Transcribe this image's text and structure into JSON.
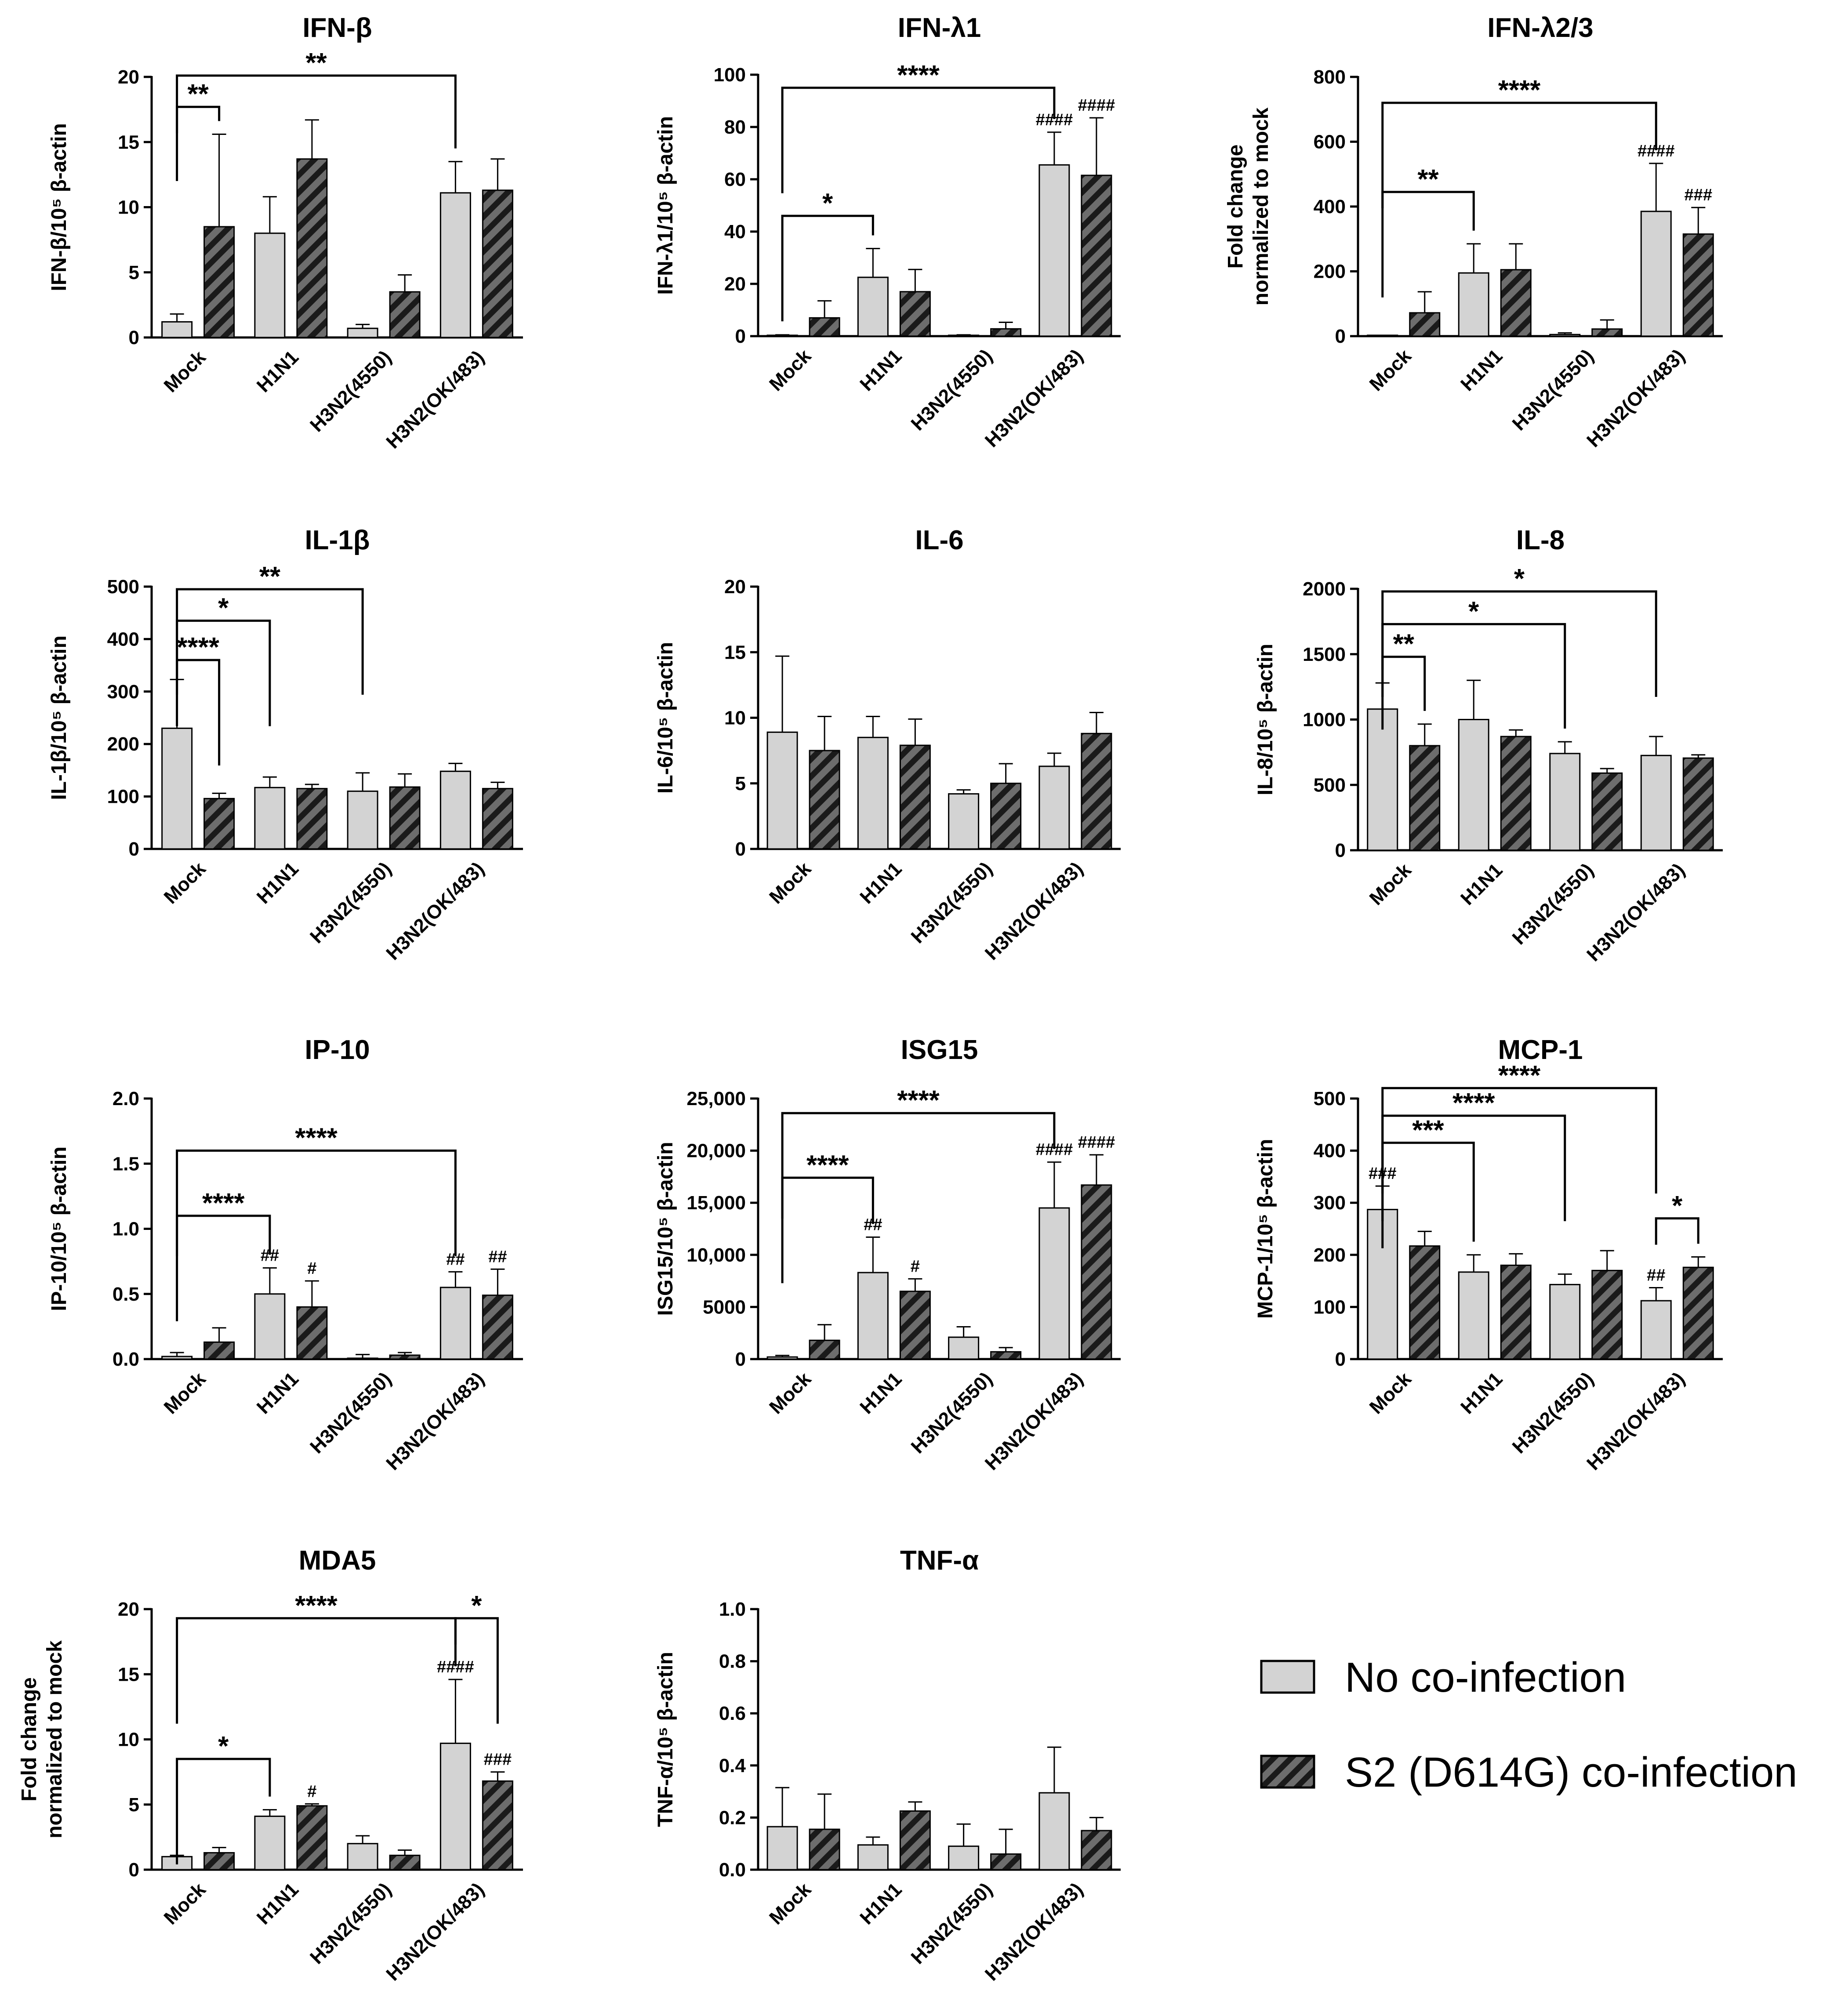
{
  "legend": {
    "items": [
      {
        "label": "No co-infection",
        "style": "solid",
        "color": "#d3d3d3"
      },
      {
        "label": "S2 (D614G) co-infection",
        "style": "hatched",
        "color": "#6d6d6d"
      }
    ]
  },
  "colors": {
    "no_coinfection": "#d3d3d3",
    "coinfection_base": "#6d6d6d",
    "coinfection_stripe": "#1a1a1a",
    "axis": "#000000"
  },
  "chart_data": [
    {
      "type": "bar",
      "title": "IFN-β",
      "ylabel": "IFN-β/10⁵ β-actin",
      "ylabel_lines": [
        "IFN-β/10⁵ β-actin"
      ],
      "categories": [
        "Mock",
        "H1N1",
        "H3N2(4550)",
        "H3N2(OK/483)"
      ],
      "ylim": [
        0,
        20
      ],
      "yticks": [
        0,
        5,
        10,
        15,
        20
      ],
      "ytick_labels": [
        "0",
        "5",
        "10",
        "15",
        "20"
      ],
      "series": [
        {
          "name": "No co-infection",
          "values": [
            1.2,
            8.0,
            0.7,
            11.1
          ],
          "errors": [
            0.6,
            2.8,
            0.3,
            2.4
          ]
        },
        {
          "name": "S2 (D614G) co-infection",
          "values": [
            8.5,
            13.7,
            3.5,
            11.3
          ],
          "errors": [
            7.1,
            3.0,
            1.3,
            2.4
          ]
        }
      ],
      "brackets": [
        {
          "from": [
            0,
            0
          ],
          "to": [
            0,
            1
          ],
          "y": 17.7,
          "label": "**"
        },
        {
          "from": [
            0,
            0
          ],
          "to": [
            3,
            0
          ],
          "y": 20.1,
          "label": "**"
        }
      ],
      "hashes": []
    },
    {
      "type": "bar",
      "title": "IFN-λ1",
      "ylabel": "IFN-λ1/10⁵ β-actin",
      "ylabel_lines": [
        "IFN-λ1/10⁵ β-actin"
      ],
      "categories": [
        "Mock",
        "H1N1",
        "H3N2(4550)",
        "H3N2(OK/483)"
      ],
      "ylim": [
        0,
        100
      ],
      "yticks": [
        0,
        20,
        40,
        60,
        80,
        100
      ],
      "ytick_labels": [
        "0",
        "20",
        "40",
        "60",
        "80",
        "100"
      ],
      "series": [
        {
          "name": "No co-infection",
          "values": [
            0.2,
            22.5,
            0.2,
            65.5
          ],
          "errors": [
            0.3,
            11.0,
            0.3,
            12.5
          ]
        },
        {
          "name": "S2 (D614G) co-infection",
          "values": [
            7.0,
            17.0,
            2.8,
            61.5
          ],
          "errors": [
            6.5,
            8.5,
            2.5,
            22.0
          ]
        }
      ],
      "brackets": [
        {
          "from": [
            0,
            0
          ],
          "to": [
            1,
            0
          ],
          "y": 46,
          "label": "*"
        },
        {
          "from": [
            0,
            0
          ],
          "to": [
            3,
            0
          ],
          "y": 95,
          "label": "****"
        }
      ],
      "hashes": [
        {
          "cat": 3,
          "series": 0,
          "text": "####"
        },
        {
          "cat": 3,
          "series": 1,
          "text": "####"
        }
      ]
    },
    {
      "type": "bar",
      "title": "IFN-λ2/3",
      "ylabel": "Fold change normalized to mock",
      "ylabel_lines": [
        "Fold change",
        "normalized to mock"
      ],
      "categories": [
        "Mock",
        "H1N1",
        "H3N2(4550)",
        "H3N2(OK/483)"
      ],
      "ylim": [
        0,
        800
      ],
      "yticks": [
        0,
        200,
        400,
        600,
        800
      ],
      "ytick_labels": [
        "0",
        "200",
        "400",
        "600",
        "800"
      ],
      "series": [
        {
          "name": "No co-infection",
          "values": [
            1,
            195,
            5,
            385
          ],
          "errors": [
            1,
            90,
            5,
            148
          ]
        },
        {
          "name": "S2 (D614G) co-infection",
          "values": [
            72,
            205,
            22,
            315
          ],
          "errors": [
            65,
            80,
            28,
            82
          ]
        }
      ],
      "brackets": [
        {
          "from": [
            0,
            0
          ],
          "to": [
            1,
            0
          ],
          "y": 445,
          "label": "**"
        },
        {
          "from": [
            0,
            0
          ],
          "to": [
            3,
            0
          ],
          "y": 720,
          "label": "****"
        }
      ],
      "hashes": [
        {
          "cat": 3,
          "series": 0,
          "text": "####"
        },
        {
          "cat": 3,
          "series": 1,
          "text": "###"
        }
      ]
    },
    {
      "type": "bar",
      "title": "IL-1β",
      "ylabel": "IL-1β/10⁵ β-actin",
      "ylabel_lines": [
        "IL-1β/10⁵ β-actin"
      ],
      "categories": [
        "Mock",
        "H1N1",
        "H3N2(4550)",
        "H3N2(OK/483)"
      ],
      "ylim": [
        0,
        500
      ],
      "yticks": [
        0,
        100,
        200,
        300,
        400,
        500
      ],
      "ytick_labels": [
        "0",
        "100",
        "200",
        "300",
        "400",
        "500"
      ],
      "series": [
        {
          "name": "No co-infection",
          "values": [
            230,
            117,
            110,
            148
          ],
          "errors": [
            93,
            20,
            35,
            15
          ]
        },
        {
          "name": "S2 (D614G) co-infection",
          "values": [
            96,
            115,
            118,
            115
          ],
          "errors": [
            10,
            8,
            25,
            12
          ]
        }
      ],
      "brackets": [
        {
          "from": [
            0,
            0
          ],
          "to": [
            0,
            1
          ],
          "y": 360,
          "label": "****"
        },
        {
          "from": [
            0,
            0
          ],
          "to": [
            1,
            0
          ],
          "y": 435,
          "label": "*"
        },
        {
          "from": [
            0,
            0
          ],
          "to": [
            2,
            0
          ],
          "y": 495,
          "label": "**"
        }
      ],
      "hashes": []
    },
    {
      "type": "bar",
      "title": "IL-6",
      "ylabel": "IL-6/10⁵ β-actin",
      "ylabel_lines": [
        "IL-6/10⁵ β-actin"
      ],
      "categories": [
        "Mock",
        "H1N1",
        "H3N2(4550)",
        "H3N2(OK/483)"
      ],
      "ylim": [
        0,
        20
      ],
      "yticks": [
        0,
        5,
        10,
        15,
        20
      ],
      "ytick_labels": [
        "0",
        "5",
        "10",
        "15",
        "20"
      ],
      "series": [
        {
          "name": "No co-infection",
          "values": [
            8.9,
            8.5,
            4.2,
            6.3
          ],
          "errors": [
            5.8,
            1.6,
            0.3,
            1.0
          ]
        },
        {
          "name": "S2 (D614G) co-infection",
          "values": [
            7.5,
            7.9,
            5.0,
            8.8
          ],
          "errors": [
            2.6,
            2.0,
            1.5,
            1.6
          ]
        }
      ],
      "brackets": [],
      "hashes": []
    },
    {
      "type": "bar",
      "title": "IL-8",
      "ylabel": "IL-8/10⁵ β-actin",
      "ylabel_lines": [
        "IL-8/10⁵ β-actin"
      ],
      "categories": [
        "Mock",
        "H1N1",
        "H3N2(4550)",
        "H3N2(OK/483)"
      ],
      "ylim": [
        0,
        2000
      ],
      "yticks": [
        0,
        500,
        1000,
        1500,
        2000
      ],
      "ytick_labels": [
        "0",
        "500",
        "1000",
        "1500",
        "2000"
      ],
      "series": [
        {
          "name": "No co-infection",
          "values": [
            1080,
            1000,
            740,
            725
          ],
          "errors": [
            200,
            300,
            90,
            145
          ]
        },
        {
          "name": "S2 (D614G) co-infection",
          "values": [
            800,
            870,
            590,
            705
          ],
          "errors": [
            165,
            50,
            35,
            25
          ]
        }
      ],
      "brackets": [
        {
          "from": [
            0,
            0
          ],
          "to": [
            0,
            1
          ],
          "y": 1480,
          "label": "**"
        },
        {
          "from": [
            0,
            0
          ],
          "to": [
            2,
            0
          ],
          "y": 1730,
          "label": "*"
        },
        {
          "from": [
            0,
            0
          ],
          "to": [
            3,
            0
          ],
          "y": 1980,
          "label": "*"
        }
      ],
      "hashes": []
    },
    {
      "type": "bar",
      "title": "IP-10",
      "ylabel": "IP-10/10⁵ β-actin",
      "ylabel_lines": [
        "IP-10/10⁵ β-actin"
      ],
      "categories": [
        "Mock",
        "H1N1",
        "H3N2(4550)",
        "H3N2(OK/483)"
      ],
      "ylim": [
        0,
        2.0
      ],
      "yticks": [
        0,
        0.5,
        1.0,
        1.5,
        2.0
      ],
      "ytick_labels": [
        "0.0",
        "0.5",
        "1.0",
        "1.5",
        "2.0"
      ],
      "series": [
        {
          "name": "No co-infection",
          "values": [
            0.02,
            0.5,
            0.005,
            0.55
          ],
          "errors": [
            0.03,
            0.2,
            0.03,
            0.12
          ]
        },
        {
          "name": "S2 (D614G) co-infection",
          "values": [
            0.13,
            0.4,
            0.03,
            0.49
          ],
          "errors": [
            0.11,
            0.2,
            0.02,
            0.2
          ]
        }
      ],
      "brackets": [
        {
          "from": [
            0,
            0
          ],
          "to": [
            1,
            0
          ],
          "y": 1.1,
          "label": "****"
        },
        {
          "from": [
            0,
            0
          ],
          "to": [
            3,
            0
          ],
          "y": 1.6,
          "label": "****"
        }
      ],
      "hashes": [
        {
          "cat": 1,
          "series": 0,
          "text": "##"
        },
        {
          "cat": 1,
          "series": 1,
          "text": "#"
        },
        {
          "cat": 3,
          "series": 0,
          "text": "##"
        },
        {
          "cat": 3,
          "series": 1,
          "text": "##"
        }
      ]
    },
    {
      "type": "bar",
      "title": "ISG15",
      "title_small": true,
      "ylabel": "ISG15/10⁵ β-actin",
      "ylabel_lines": [
        "ISG15/10⁵ β-actin"
      ],
      "categories": [
        "Mock",
        "H1N1",
        "H3N2(4550)",
        "H3N2(OK/483)"
      ],
      "ylim": [
        0,
        25000
      ],
      "yticks": [
        0,
        5000,
        10000,
        15000,
        20000,
        25000
      ],
      "ytick_labels": [
        "0",
        "5000",
        "10,000",
        "15,000",
        "20,000",
        "25,000"
      ],
      "series": [
        {
          "name": "No co-infection",
          "values": [
            200,
            8300,
            2100,
            14500
          ],
          "errors": [
            150,
            3400,
            1000,
            4400
          ]
        },
        {
          "name": "S2 (D614G) co-infection",
          "values": [
            1800,
            6500,
            700,
            16700
          ],
          "errors": [
            1500,
            1200,
            400,
            2900
          ]
        }
      ],
      "brackets": [
        {
          "from": [
            0,
            0
          ],
          "to": [
            1,
            0
          ],
          "y": 17400,
          "label": "****"
        },
        {
          "from": [
            0,
            0
          ],
          "to": [
            3,
            0
          ],
          "y": 23600,
          "label": "****"
        }
      ],
      "hashes": [
        {
          "cat": 1,
          "series": 0,
          "text": "##"
        },
        {
          "cat": 1,
          "series": 1,
          "text": "#"
        },
        {
          "cat": 3,
          "series": 0,
          "text": "####"
        },
        {
          "cat": 3,
          "series": 1,
          "text": "####"
        }
      ]
    },
    {
      "type": "bar",
      "title": "MCP-1",
      "ylabel": "MCP-1/10⁵ β-actin",
      "ylabel_lines": [
        "MCP-1/10⁵ β-actin"
      ],
      "categories": [
        "Mock",
        "H1N1",
        "H3N2(4550)",
        "H3N2(OK/483)"
      ],
      "ylim": [
        0,
        500
      ],
      "yticks": [
        0,
        100,
        200,
        300,
        400,
        500
      ],
      "ytick_labels": [
        "0",
        "100",
        "200",
        "300",
        "400",
        "500"
      ],
      "series": [
        {
          "name": "No co-infection",
          "values": [
            287,
            167,
            143,
            112
          ],
          "errors": [
            45,
            33,
            20,
            25
          ]
        },
        {
          "name": "S2 (D614G) co-infection",
          "values": [
            217,
            180,
            170,
            176
          ],
          "errors": [
            28,
            22,
            38,
            20
          ]
        }
      ],
      "brackets": [
        {
          "from": [
            3,
            0
          ],
          "to": [
            3,
            1
          ],
          "y": 270,
          "label": "*"
        },
        {
          "from": [
            0,
            0
          ],
          "to": [
            1,
            0
          ],
          "y": 415,
          "label": "***"
        },
        {
          "from": [
            0,
            0
          ],
          "to": [
            2,
            0
          ],
          "y": 467,
          "label": "****"
        },
        {
          "from": [
            0,
            0
          ],
          "to": [
            3,
            0
          ],
          "y": 520,
          "label": "****"
        }
      ],
      "hashes": [
        {
          "cat": 0,
          "series": 0,
          "text": "###"
        },
        {
          "cat": 3,
          "series": 0,
          "text": "##"
        }
      ]
    },
    {
      "type": "bar",
      "title": "MDA5",
      "ylabel": "Fold change normalized to mock",
      "ylabel_lines": [
        "Fold change",
        "normalized to mock"
      ],
      "categories": [
        "Mock",
        "H1N1",
        "H3N2(4550)",
        "H3N2(OK/483)"
      ],
      "ylim": [
        0,
        20
      ],
      "yticks": [
        0,
        5,
        10,
        15,
        20
      ],
      "ytick_labels": [
        "0",
        "5",
        "10",
        "15",
        "20"
      ],
      "series": [
        {
          "name": "No co-infection",
          "values": [
            1.0,
            4.1,
            2.0,
            9.7
          ],
          "errors": [
            0.1,
            0.5,
            0.6,
            4.9
          ]
        },
        {
          "name": "S2 (D614G) co-infection",
          "values": [
            1.3,
            4.9,
            1.1,
            6.8
          ],
          "errors": [
            0.4,
            0.15,
            0.4,
            0.7
          ]
        }
      ],
      "brackets": [
        {
          "from": [
            0,
            0
          ],
          "to": [
            1,
            0
          ],
          "y": 8.5,
          "label": "*"
        },
        {
          "from": [
            0,
            0
          ],
          "to": [
            3,
            0
          ],
          "y": 19.3,
          "label": "****"
        },
        {
          "from": [
            3,
            0
          ],
          "to": [
            3,
            1
          ],
          "y": 19.3,
          "label": "*"
        }
      ],
      "hashes": [
        {
          "cat": 1,
          "series": 1,
          "text": "#"
        },
        {
          "cat": 3,
          "series": 0,
          "text": "####"
        },
        {
          "cat": 3,
          "series": 1,
          "text": "###"
        }
      ]
    },
    {
      "type": "bar",
      "title": "TNF-α",
      "ylabel": "TNF-α/10⁵ β-actin",
      "ylabel_lines": [
        "TNF-α/10⁵ β-actin"
      ],
      "categories": [
        "Mock",
        "H1N1",
        "H3N2(4550)",
        "H3N2(OK/483)"
      ],
      "ylim": [
        0,
        1.0
      ],
      "yticks": [
        0,
        0.2,
        0.4,
        0.6,
        0.8,
        1.0
      ],
      "ytick_labels": [
        "0.0",
        "0.2",
        "0.4",
        "0.6",
        "0.8",
        "1.0"
      ],
      "series": [
        {
          "name": "No co-infection",
          "values": [
            0.165,
            0.095,
            0.09,
            0.295
          ],
          "errors": [
            0.15,
            0.03,
            0.085,
            0.175
          ]
        },
        {
          "name": "S2 (D614G) co-infection",
          "values": [
            0.155,
            0.225,
            0.06,
            0.15
          ],
          "errors": [
            0.135,
            0.035,
            0.095,
            0.05
          ]
        }
      ],
      "brackets": [],
      "hashes": []
    }
  ]
}
